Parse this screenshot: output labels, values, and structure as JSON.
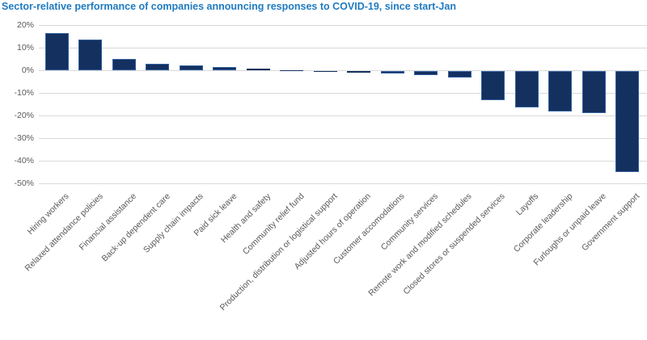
{
  "title": "Sector-relative performance of companies announcing responses to COVID-19, since start-Jan",
  "colors": {
    "title": "#1F7BC0",
    "bar_fill": "#13305F",
    "bar_border": "#33609F",
    "gridline": "#D9D9D9",
    "axis_text": "#595959",
    "background": "#FFFFFF"
  },
  "y_axis": {
    "tick_labels": [
      "20%",
      "10%",
      "0%",
      "-10%",
      "-20%",
      "-30%",
      "-40%",
      "-50%"
    ]
  },
  "chart_data": {
    "type": "bar",
    "title": "Sector-relative performance of companies announcing responses to COVID-19, since start-Jan",
    "categories": [
      "Hiring workers",
      "Relaxed attendance policies",
      "Financial assistance",
      "Back-up dependent care",
      "Supply chain impacts",
      "Paid sick leave",
      "Health and safety",
      "Community relief fund",
      "Production, distribution or logistical support",
      "Adjusted hours of operation",
      "Customer accomodations",
      "Community services",
      "Remote work and modified schedules",
      "Closed stores or suspended services",
      "Layoffs",
      "Corporate leadership",
      "Furloughs or unpaid leave",
      "Government support"
    ],
    "values": [
      16.5,
      13.5,
      5,
      3,
      2,
      1.3,
      0.6,
      0.1,
      -0.2,
      -0.7,
      -1.1,
      -1.8,
      -2.8,
      -12.8,
      -16,
      -18,
      -18.5,
      -44.5
    ],
    "xlabel": "",
    "ylabel": "",
    "ylim": [
      -50,
      20
    ],
    "ytick_step": 10,
    "ytick_format": "percent",
    "grid": true,
    "legend": false,
    "bar_color": "#13305F"
  }
}
